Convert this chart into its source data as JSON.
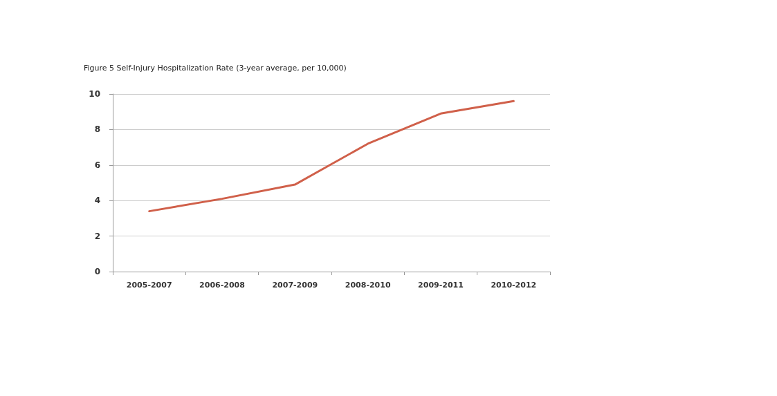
{
  "chart_data": {
    "type": "line",
    "title": "Figure 5 Self-Injury Hospitalization Rate (3-year average, per 10,000)",
    "categories": [
      "2005-2007",
      "2006-2008",
      "2007-2009",
      "2008-2010",
      "2009-2011",
      "2010-2012"
    ],
    "series": [
      {
        "color": "#d0604a",
        "values": [
          3.4,
          4.1,
          4.9,
          7.2,
          8.9,
          9.6
        ]
      }
    ],
    "ylim": [
      0,
      10
    ],
    "yticks": [
      0,
      2,
      4,
      6,
      8,
      10
    ],
    "grid": "y",
    "marker": "none",
    "line_style": "solid"
  }
}
